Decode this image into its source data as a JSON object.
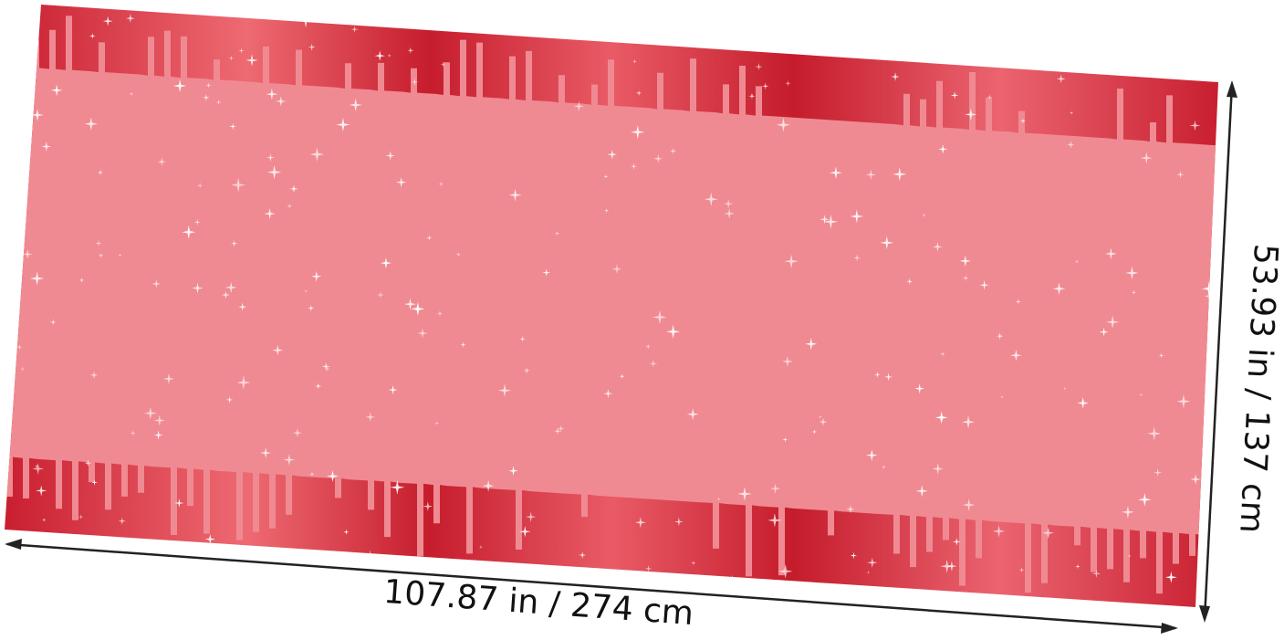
{
  "product": {
    "border_color": "#d42a3a",
    "glitter_color": "#f08a92",
    "sparkle_color": "#ffffff"
  },
  "dimensions": {
    "width_label": "107.87 in / 274 cm",
    "height_label": "53.93 in / 137 cm"
  }
}
